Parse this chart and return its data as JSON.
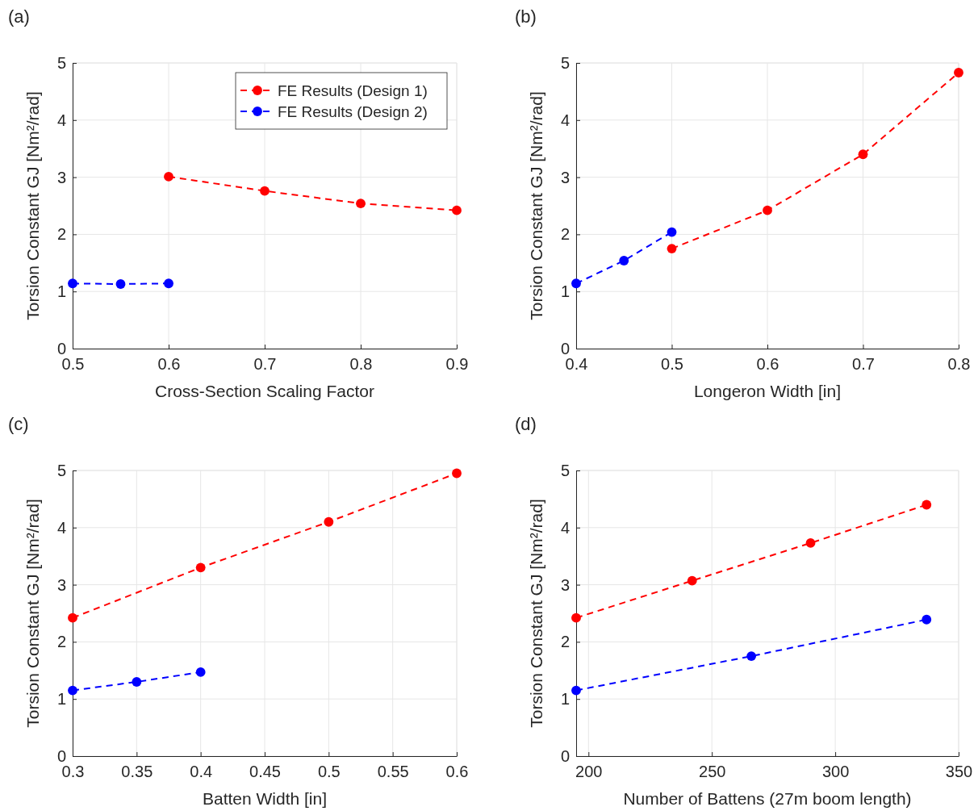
{
  "chart_data": [
    {
      "type": "line",
      "title": "(a)",
      "xlabel": "Cross-Section Scaling Factor",
      "ylabel": "Torsion Constant GJ [Nm²/rad]",
      "xlim": [
        0.5,
        0.9
      ],
      "xticks": [
        0.5,
        0.6,
        0.7,
        0.8,
        0.9
      ],
      "ylim": [
        0,
        5
      ],
      "yticks": [
        0,
        1,
        2,
        3,
        4,
        5
      ],
      "grid": true,
      "legend": "top right",
      "marker": "circle",
      "line_style": "dashed",
      "series": [
        {
          "name": "FE Results (Design 1)",
          "color": "#ff0000",
          "x": [
            0.6,
            0.7,
            0.8,
            0.9
          ],
          "values": [
            3.01,
            2.76,
            2.54,
            2.42
          ]
        },
        {
          "name": "FE Results (Design 2)",
          "color": "#0000ff",
          "x": [
            0.5,
            0.55,
            0.6
          ],
          "values": [
            1.14,
            1.13,
            1.14
          ]
        }
      ]
    },
    {
      "type": "line",
      "title": "(b)",
      "xlabel": "Longeron Width [in]",
      "ylabel": "Torsion Constant GJ [Nm²/rad]",
      "xlim": [
        0.4,
        0.8
      ],
      "xticks": [
        0.4,
        0.5,
        0.6,
        0.7,
        0.8
      ],
      "ylim": [
        0,
        5
      ],
      "yticks": [
        0,
        1,
        2,
        3,
        4,
        5
      ],
      "grid": true,
      "marker": "circle",
      "line_style": "dashed",
      "series": [
        {
          "color": "#ff0000",
          "x": [
            0.5,
            0.6,
            0.7,
            0.8
          ],
          "values": [
            1.75,
            2.42,
            3.4,
            4.83
          ]
        },
        {
          "color": "#0000ff",
          "x": [
            0.4,
            0.45,
            0.5
          ],
          "values": [
            1.14,
            1.54,
            2.04
          ]
        }
      ]
    },
    {
      "type": "line",
      "title": "(c)",
      "xlabel": "Batten Width [in]",
      "ylabel": "Torsion Constant GJ [Nm²/rad]",
      "xlim": [
        0.3,
        0.6
      ],
      "xticks": [
        0.3,
        0.35,
        0.4,
        0.45,
        0.5,
        0.55,
        0.6
      ],
      "ylim": [
        0,
        5
      ],
      "yticks": [
        0,
        1,
        2,
        3,
        4,
        5
      ],
      "grid": true,
      "marker": "circle",
      "line_style": "dashed",
      "series": [
        {
          "color": "#ff0000",
          "x": [
            0.3,
            0.4,
            0.5,
            0.6
          ],
          "values": [
            2.42,
            3.3,
            4.1,
            4.95
          ]
        },
        {
          "color": "#0000ff",
          "x": [
            0.3,
            0.35,
            0.4
          ],
          "values": [
            1.15,
            1.3,
            1.47
          ]
        }
      ]
    },
    {
      "type": "line",
      "title": "(d)",
      "xlabel": "Number of Battens (27m boom length)",
      "ylabel": "Torsion Constant GJ [Nm²/rad]",
      "xlim": [
        195,
        350
      ],
      "xticks": [
        200,
        250,
        300,
        350
      ],
      "ylim": [
        0,
        5
      ],
      "yticks": [
        0,
        1,
        2,
        3,
        4,
        5
      ],
      "grid": true,
      "marker": "circle",
      "line_style": "dashed",
      "series": [
        {
          "color": "#ff0000",
          "x": [
            195,
            242,
            290,
            337
          ],
          "values": [
            2.42,
            3.07,
            3.73,
            4.4
          ]
        },
        {
          "color": "#0000ff",
          "x": [
            195,
            266,
            337
          ],
          "values": [
            1.15,
            1.75,
            2.39
          ]
        }
      ]
    }
  ]
}
